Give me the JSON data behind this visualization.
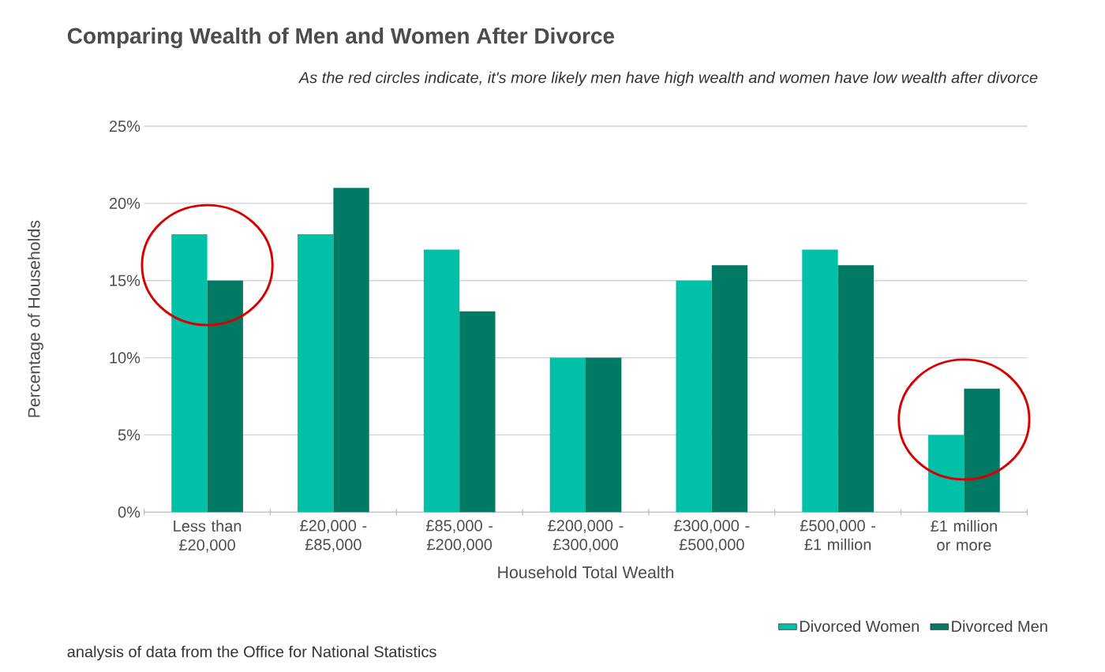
{
  "chart_data": {
    "type": "bar",
    "title": "Comparing Wealth of Men and Women After Divorce",
    "subtitle": "As the red circles indicate, it's more likely men have high wealth and women have low wealth after divorce",
    "xlabel": "Household Total Wealth",
    "ylabel": "Percentage of Households",
    "categories": [
      "Less than £20,000",
      "£20,000 - £85,000",
      "£85,000 - £200,000",
      "£200,000 - £300,000",
      "£300,000 - £500,000",
      "£500,000 - £1 million",
      "£1 million or more"
    ],
    "series": [
      {
        "name": "Divorced Women",
        "color": "#00c0a8",
        "values": [
          18,
          18,
          17,
          10,
          15,
          17,
          5
        ]
      },
      {
        "name": "Divorced Men",
        "color": "#007a63",
        "values": [
          15,
          21,
          13,
          10,
          16,
          16,
          8
        ]
      }
    ],
    "ylim": [
      0,
      25
    ],
    "yticks": [
      {
        "value": 0,
        "label": "0%"
      },
      {
        "value": 5,
        "label": "5%"
      },
      {
        "value": 10,
        "label": "10%"
      },
      {
        "value": 15,
        "label": "15%"
      },
      {
        "value": 20,
        "label": "20%"
      },
      {
        "value": 25,
        "label": "25%"
      }
    ],
    "grid": "y",
    "legend": "bottom right",
    "annotations": [
      "analysis of data from the Office for National Statistics"
    ]
  }
}
